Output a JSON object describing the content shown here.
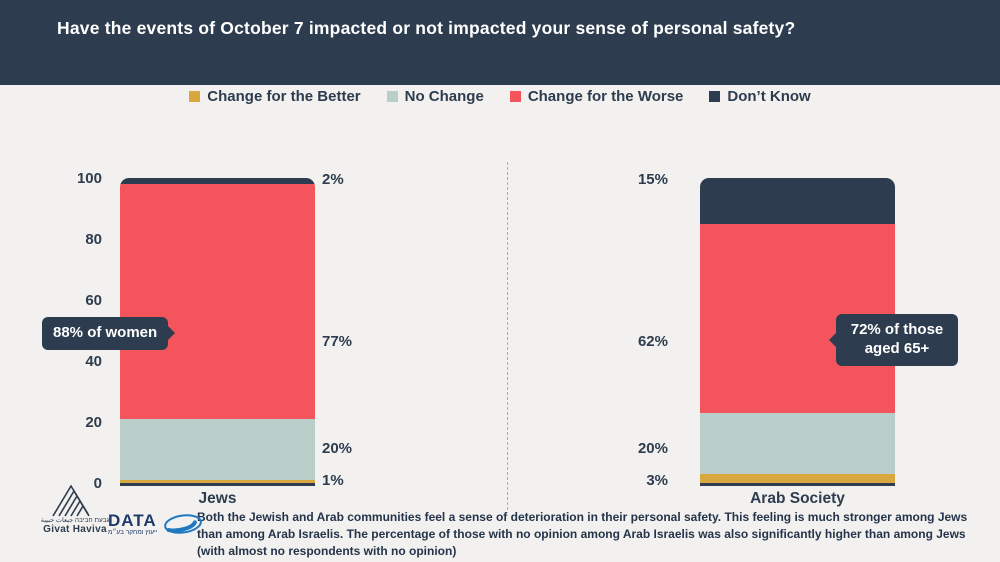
{
  "header": {
    "title": "Have the events of October 7 impacted or not impacted your sense of personal safety?"
  },
  "legend": [
    {
      "label": "Change for the Better",
      "color": "#d8a73e"
    },
    {
      "label": "No Change",
      "color": "#b9cec8"
    },
    {
      "label": "Change for the Worse",
      "color": "#f4555c"
    },
    {
      "label": "Don’t Know",
      "color": "#2d3c4e"
    }
  ],
  "chart_data": {
    "type": "bar",
    "stacked": true,
    "title": "Have the events of October 7 impacted or not impacted your sense of personal safety?",
    "categories": [
      "Jews",
      "Arab Society"
    ],
    "series": [
      {
        "name": "Change for the Better",
        "color": "#d8a73e",
        "values": [
          1,
          3
        ]
      },
      {
        "name": "No Change",
        "color": "#b9cec8",
        "values": [
          20,
          20
        ]
      },
      {
        "name": "Change for the Worse",
        "color": "#f4555c",
        "values": [
          77,
          62
        ]
      },
      {
        "name": "Don’t Know",
        "color": "#2d3c4e",
        "values": [
          2,
          15
        ]
      }
    ],
    "ylim": [
      0,
      100
    ],
    "yticks": [
      0,
      20,
      40,
      60,
      80,
      100
    ],
    "grid": false,
    "legend_position": "top",
    "value_labels": {
      "jews": [
        "1%",
        "20%",
        "77%",
        "2%"
      ],
      "arab": [
        "3%",
        "20%",
        "62%",
        "15%"
      ]
    },
    "annotations": [
      {
        "text": "88% of women",
        "target": "Jews"
      },
      {
        "text": "72% of those aged 65+",
        "target": "Arab Society"
      }
    ]
  },
  "callouts": {
    "left": "88% of women",
    "right": "72% of those aged 65+"
  },
  "footer": {
    "note": "Both the Jewish and Arab communities feel a sense of deterioration in their personal safety. This feeling is much stronger among Jews than among Arab Israelis. The percentage of those with no opinion among Arab Israelis was also significantly higher than among Jews (with almost no respondents with no opinion)",
    "logos": {
      "givat_bilingual": "גבעת חביבה جبعات حبيبة",
      "givat_name": "Givat Haviva",
      "data_word": "DATA",
      "data_sub": "ייעוץ ומחקר בע״מ"
    }
  }
}
